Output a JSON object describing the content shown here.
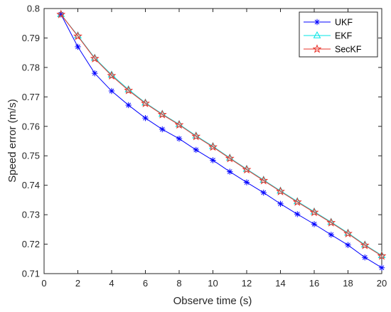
{
  "chart_data": {
    "type": "line",
    "xlabel": "Observe time (s)",
    "ylabel": "Speed  error (m/s)",
    "xlim": [
      0,
      20
    ],
    "ylim": [
      0.71,
      0.8
    ],
    "xticks": [
      0,
      2,
      4,
      6,
      8,
      10,
      12,
      14,
      16,
      18,
      20
    ],
    "yticks": [
      0.71,
      0.72,
      0.73,
      0.74,
      0.75,
      0.76,
      0.77,
      0.78,
      0.79,
      0.8
    ],
    "xtick_labels": [
      "0",
      "2",
      "4",
      "6",
      "8",
      "10",
      "12",
      "14",
      "16",
      "18",
      "20"
    ],
    "ytick_labels": [
      "0.71",
      "0.72",
      "0.73",
      "0.74",
      "0.75",
      "0.76",
      "0.77",
      "0.78",
      "0.79",
      "0.8"
    ],
    "grid": false,
    "legend_position": "top-right",
    "x": [
      1,
      2,
      3,
      4,
      5,
      6,
      7,
      8,
      9,
      10,
      11,
      12,
      13,
      14,
      15,
      16,
      17,
      18,
      19,
      20
    ],
    "series": [
      {
        "name": "UKF",
        "color": "#0000ff",
        "marker": "asterisk",
        "values": [
          0.798,
          0.787,
          0.778,
          0.772,
          0.7672,
          0.7628,
          0.759,
          0.7558,
          0.752,
          0.7485,
          0.7446,
          0.741,
          0.7375,
          0.7337,
          0.7302,
          0.7268,
          0.7232,
          0.7197,
          0.7155,
          0.712
        ]
      },
      {
        "name": "EKF",
        "color": "#00e5e5",
        "marker": "triangle",
        "values": [
          0.798,
          0.7908,
          0.7832,
          0.7775,
          0.7725,
          0.768,
          0.7642,
          0.7607,
          0.7568,
          0.7532,
          0.7493,
          0.7455,
          0.7418,
          0.7381,
          0.7345,
          0.731,
          0.7275,
          0.7238,
          0.7198,
          0.7162
        ]
      },
      {
        "name": "SecKF",
        "color": "#e8332a",
        "marker": "star",
        "values": [
          0.798,
          0.7906,
          0.783,
          0.7772,
          0.7722,
          0.7678,
          0.764,
          0.7605,
          0.7566,
          0.753,
          0.7491,
          0.7453,
          0.7416,
          0.7379,
          0.7343,
          0.7308,
          0.7273,
          0.7236,
          0.7196,
          0.716
        ]
      }
    ]
  }
}
